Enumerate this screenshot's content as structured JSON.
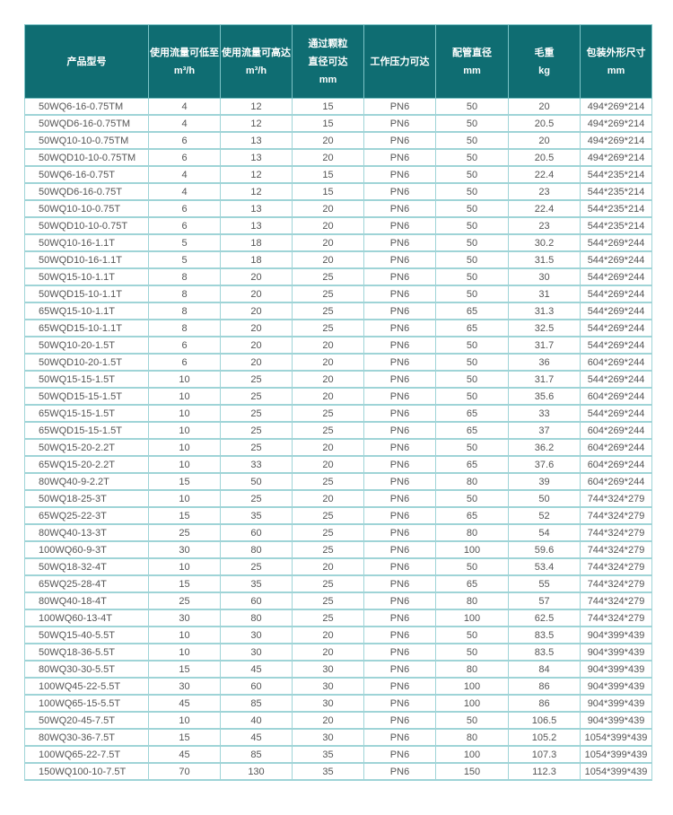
{
  "colors": {
    "header_bg": "#0f6d72",
    "border": "#9fd4d7",
    "text": "#555555"
  },
  "headers": [
    [
      "产品型号"
    ],
    [
      "使用流量可低至",
      "m³/h"
    ],
    [
      "使用流量可高达",
      "m³/h"
    ],
    [
      "通过颗粒",
      "直径可达",
      "mm"
    ],
    [
      "工作压力可达"
    ],
    [
      "配管直径",
      "mm"
    ],
    [
      "毛重",
      "kg"
    ],
    [
      "包装外形尺寸",
      "mm"
    ]
  ],
  "rows": [
    [
      "50WQ6-16-0.75TM",
      "4",
      "12",
      "15",
      "PN6",
      "50",
      "20",
      "494*269*214"
    ],
    [
      "50WQD6-16-0.75TM",
      "4",
      "12",
      "15",
      "PN6",
      "50",
      "20.5",
      "494*269*214"
    ],
    [
      "50WQ10-10-0.75TM",
      "6",
      "13",
      "20",
      "PN6",
      "50",
      "20",
      "494*269*214"
    ],
    [
      "50WQD10-10-0.75TM",
      "6",
      "13",
      "20",
      "PN6",
      "50",
      "20.5",
      "494*269*214"
    ],
    [
      "50WQ6-16-0.75T",
      "4",
      "12",
      "15",
      "PN6",
      "50",
      "22.4",
      "544*235*214"
    ],
    [
      "50WQD6-16-0.75T",
      "4",
      "12",
      "15",
      "PN6",
      "50",
      "23",
      "544*235*214"
    ],
    [
      "50WQ10-10-0.75T",
      "6",
      "13",
      "20",
      "PN6",
      "50",
      "22.4",
      "544*235*214"
    ],
    [
      "50WQD10-10-0.75T",
      "6",
      "13",
      "20",
      "PN6",
      "50",
      "23",
      "544*235*214"
    ],
    [
      "50WQ10-16-1.1T",
      "5",
      "18",
      "20",
      "PN6",
      "50",
      "30.2",
      "544*269*244"
    ],
    [
      "50WQD10-16-1.1T",
      "5",
      "18",
      "20",
      "PN6",
      "50",
      "31.5",
      "544*269*244"
    ],
    [
      "50WQ15-10-1.1T",
      "8",
      "20",
      "25",
      "PN6",
      "50",
      "30",
      "544*269*244"
    ],
    [
      "50WQD15-10-1.1T",
      "8",
      "20",
      "25",
      "PN6",
      "50",
      "31",
      "544*269*244"
    ],
    [
      "65WQ15-10-1.1T",
      "8",
      "20",
      "25",
      "PN6",
      "65",
      "31.3",
      "544*269*244"
    ],
    [
      "65WQD15-10-1.1T",
      "8",
      "20",
      "25",
      "PN6",
      "65",
      "32.5",
      "544*269*244"
    ],
    [
      "50WQ10-20-1.5T",
      "6",
      "20",
      "20",
      "PN6",
      "50",
      "31.7",
      "544*269*244"
    ],
    [
      "50WQD10-20-1.5T",
      "6",
      "20",
      "20",
      "PN6",
      "50",
      "36",
      "604*269*244"
    ],
    [
      "50WQ15-15-1.5T",
      "10",
      "25",
      "20",
      "PN6",
      "50",
      "31.7",
      "544*269*244"
    ],
    [
      "50WQD15-15-1.5T",
      "10",
      "25",
      "20",
      "PN6",
      "50",
      "35.6",
      "604*269*244"
    ],
    [
      "65WQ15-15-1.5T",
      "10",
      "25",
      "25",
      "PN6",
      "65",
      "33",
      "544*269*244"
    ],
    [
      "65WQD15-15-1.5T",
      "10",
      "25",
      "25",
      "PN6",
      "65",
      "37",
      "604*269*244"
    ],
    [
      "50WQ15-20-2.2T",
      "10",
      "25",
      "20",
      "PN6",
      "50",
      "36.2",
      "604*269*244"
    ],
    [
      "65WQ15-20-2.2T",
      "10",
      "33",
      "20",
      "PN6",
      "65",
      "37.6",
      "604*269*244"
    ],
    [
      "80WQ40-9-2.2T",
      "15",
      "50",
      "25",
      "PN6",
      "80",
      "39",
      "604*269*244"
    ],
    [
      "50WQ18-25-3T",
      "10",
      "25",
      "20",
      "PN6",
      "50",
      "50",
      "744*324*279"
    ],
    [
      "65WQ25-22-3T",
      "15",
      "35",
      "25",
      "PN6",
      "65",
      "52",
      "744*324*279"
    ],
    [
      "80WQ40-13-3T",
      "25",
      "60",
      "25",
      "PN6",
      "80",
      "54",
      "744*324*279"
    ],
    [
      "100WQ60-9-3T",
      "30",
      "80",
      "25",
      "PN6",
      "100",
      "59.6",
      "744*324*279"
    ],
    [
      "50WQ18-32-4T",
      "10",
      "25",
      "20",
      "PN6",
      "50",
      "53.4",
      "744*324*279"
    ],
    [
      "65WQ25-28-4T",
      "15",
      "35",
      "25",
      "PN6",
      "65",
      "55",
      "744*324*279"
    ],
    [
      "80WQ40-18-4T",
      "25",
      "60",
      "25",
      "PN6",
      "80",
      "57",
      "744*324*279"
    ],
    [
      "100WQ60-13-4T",
      "30",
      "80",
      "25",
      "PN6",
      "100",
      "62.5",
      "744*324*279"
    ],
    [
      "50WQ15-40-5.5T",
      "10",
      "30",
      "20",
      "PN6",
      "50",
      "83.5",
      "904*399*439"
    ],
    [
      "50WQ18-36-5.5T",
      "10",
      "30",
      "20",
      "PN6",
      "50",
      "83.5",
      "904*399*439"
    ],
    [
      "80WQ30-30-5.5T",
      "15",
      "45",
      "30",
      "PN6",
      "80",
      "84",
      "904*399*439"
    ],
    [
      "100WQ45-22-5.5T",
      "30",
      "60",
      "30",
      "PN6",
      "100",
      "86",
      "904*399*439"
    ],
    [
      "100WQ65-15-5.5T",
      "45",
      "85",
      "30",
      "PN6",
      "100",
      "86",
      "904*399*439"
    ],
    [
      "50WQ20-45-7.5T",
      "10",
      "40",
      "20",
      "PN6",
      "50",
      "106.5",
      "904*399*439"
    ],
    [
      "80WQ30-36-7.5T",
      "15",
      "45",
      "30",
      "PN6",
      "80",
      "105.2",
      "1054*399*439"
    ],
    [
      "100WQ65-22-7.5T",
      "45",
      "85",
      "35",
      "PN6",
      "100",
      "107.3",
      "1054*399*439"
    ],
    [
      "150WQ100-10-7.5T",
      "70",
      "130",
      "35",
      "PN6",
      "150",
      "112.3",
      "1054*399*439"
    ]
  ]
}
